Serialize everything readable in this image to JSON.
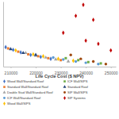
{
  "chart_data": {
    "type": "scatter",
    "x_label": "Life Cycle Cost ($ NPV)",
    "xlim": [
      207000,
      252000
    ],
    "xticks": [
      210000,
      220000,
      230000,
      240000,
      250000
    ],
    "ylim": [
      0,
      100
    ],
    "tick_labels": "x",
    "grid": false,
    "legend": "bottom",
    "series": [
      {
        "name": "Wood Wall/Standard Roof",
        "color": "#4472c4",
        "marker": "diamond",
        "x": [
          208000,
          211000,
          214000,
          218000,
          222000,
          226000
        ],
        "values": [
          30,
          26,
          22,
          18,
          15,
          12
        ]
      },
      {
        "name": "Standard Wall/Standard Roof",
        "color": "#ed7d31",
        "marker": "square",
        "x": [
          209000,
          213000,
          217000,
          221000,
          225000,
          230000
        ],
        "values": [
          28,
          23,
          19,
          16,
          13,
          10
        ]
      },
      {
        "name": "Double Stud Wall/Standard Roof",
        "color": "#a5a5a5",
        "marker": "triangle",
        "x": [
          216000,
          220000,
          224000,
          228000,
          233000
        ],
        "values": [
          21,
          17,
          14,
          11,
          8
        ]
      },
      {
        "name": "ICF Wall/Standard Roof",
        "color": "#5b9bd5",
        "marker": "circle",
        "x": [
          227000,
          231000,
          236000,
          240000,
          245000
        ],
        "values": [
          14,
          11,
          8,
          6,
          4
        ]
      },
      {
        "name": "Wood Wall/SIPS",
        "color": "#ffc000",
        "marker": "diamond",
        "x": [
          212000,
          219000,
          223000,
          229000,
          235000
        ],
        "values": [
          25,
          19,
          16,
          12,
          9
        ]
      },
      {
        "name": "ICF Wall/SIPS",
        "color": "#70ad47",
        "marker": "square",
        "x": [
          232000,
          237000,
          241000,
          246000
        ],
        "values": [
          13,
          10,
          7,
          5
        ]
      },
      {
        "name": "Standard Roof",
        "color": "#264478",
        "marker": "triangle",
        "x": [
          210000,
          215000,
          220000
        ],
        "values": [
          27,
          21,
          18
        ]
      },
      {
        "name": "SIP Wall/SIPS",
        "color": "#9e480e",
        "marker": "circle",
        "x": [
          234000,
          238000,
          243000,
          248000
        ],
        "values": [
          18,
          12,
          8,
          4
        ]
      },
      {
        "name": "SIP Systems",
        "color": "#c00000",
        "marker": "diamond",
        "x": [
          239000,
          236000,
          243000,
          231000,
          245000,
          240000,
          250000
        ],
        "values": [
          95,
          78,
          72,
          52,
          35,
          40,
          25
        ]
      }
    ]
  }
}
